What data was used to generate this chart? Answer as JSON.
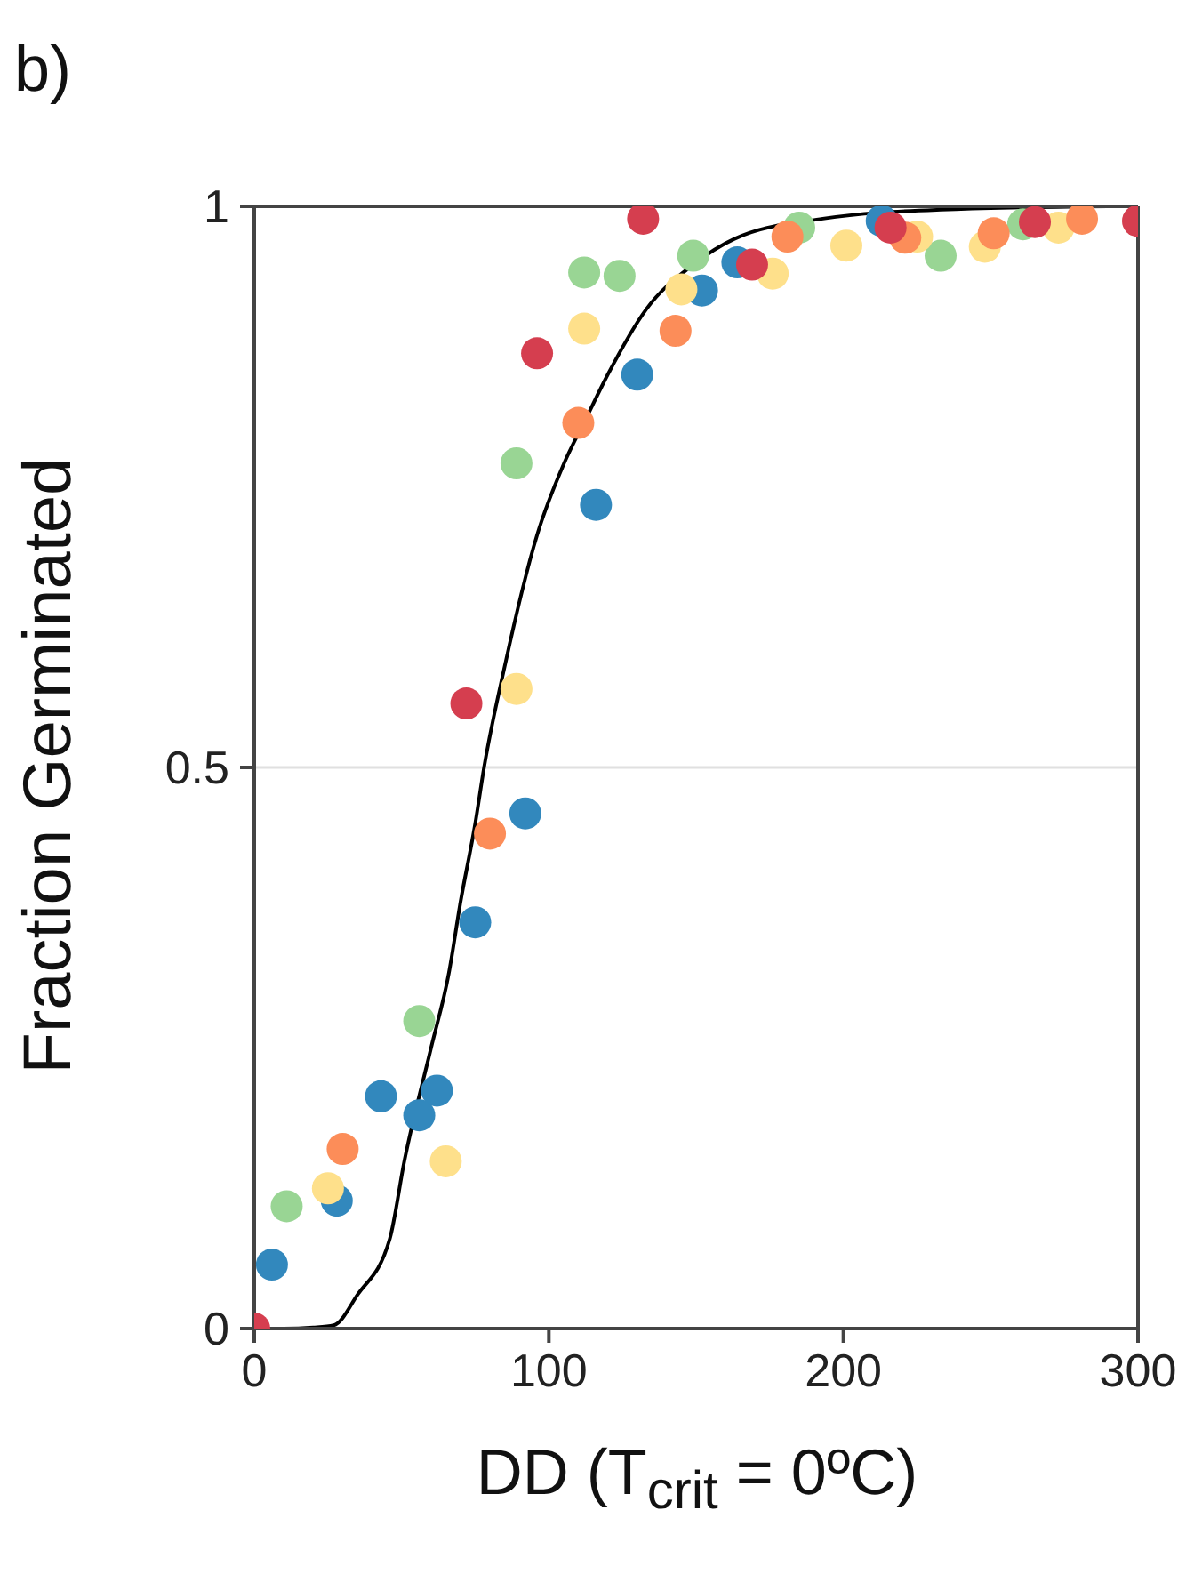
{
  "chart_data": {
    "type": "scatter",
    "xlabel": "DD (T$_{crit}$ = 0ºC)",
    "ylabel": "Fraction Germinated",
    "annotations": [
      "b)"
    ],
    "xlim": [
      0,
      300
    ],
    "xticks": [
      0,
      100,
      200,
      300
    ],
    "ylim": [
      0,
      1
    ],
    "yticks": [
      0,
      0.5,
      1
    ],
    "grid": "y",
    "marker": "circle",
    "series": [
      {
        "type": "line",
        "color": "#000000",
        "marker": "none",
        "line_style": "solid",
        "x": [
          0,
          10,
          20,
          27,
          35,
          46,
          51,
          60,
          66,
          70,
          75,
          78,
          85,
          96,
          105,
          113,
          120,
          133,
          149,
          163,
          193,
          233,
          290
        ],
        "values": [
          0,
          0,
          0.001,
          0.003,
          0.03,
          0.08,
          0.15,
          0.25,
          0.316,
          0.38,
          0.45,
          0.5,
          0.59,
          0.707,
          0.77,
          0.813,
          0.85,
          0.908,
          0.948,
          0.971,
          0.989,
          0.997,
          1
        ]
      },
      {
        "color": "#3288bd",
        "x": [
          6,
          28,
          43,
          56,
          62,
          75,
          92,
          116,
          130,
          152,
          164,
          213
        ],
        "values": [
          0.057,
          0.114,
          0.207,
          0.19,
          0.212,
          0.362,
          0.459,
          0.734,
          0.85,
          0.925,
          0.95,
          0.987
        ]
      },
      {
        "color": "#99d594",
        "x": [
          11,
          56,
          89,
          112,
          124,
          149,
          185,
          233,
          261
        ],
        "values": [
          0.109,
          0.274,
          0.771,
          0.941,
          0.938,
          0.956,
          0.981,
          0.956,
          0.984
        ]
      },
      {
        "color": "#fee08b",
        "x": [
          25,
          65,
          89,
          112,
          145,
          176,
          201,
          225,
          248,
          273
        ],
        "values": [
          0.125,
          0.149,
          0.57,
          0.891,
          0.926,
          0.94,
          0.965,
          0.973,
          0.964,
          0.981
        ]
      },
      {
        "color": "#fc8d59",
        "x": [
          30,
          80,
          110,
          143,
          181,
          221,
          251,
          281
        ],
        "values": [
          0.16,
          0.441,
          0.807,
          0.889,
          0.973,
          0.972,
          0.976,
          0.989
        ]
      },
      {
        "color": "#d53e4f",
        "x": [
          0,
          72,
          96,
          132,
          169,
          216,
          265,
          300
        ],
        "values": [
          0,
          0.557,
          0.869,
          0.989,
          0.948,
          0.981,
          0.986,
          0.987
        ]
      }
    ]
  }
}
